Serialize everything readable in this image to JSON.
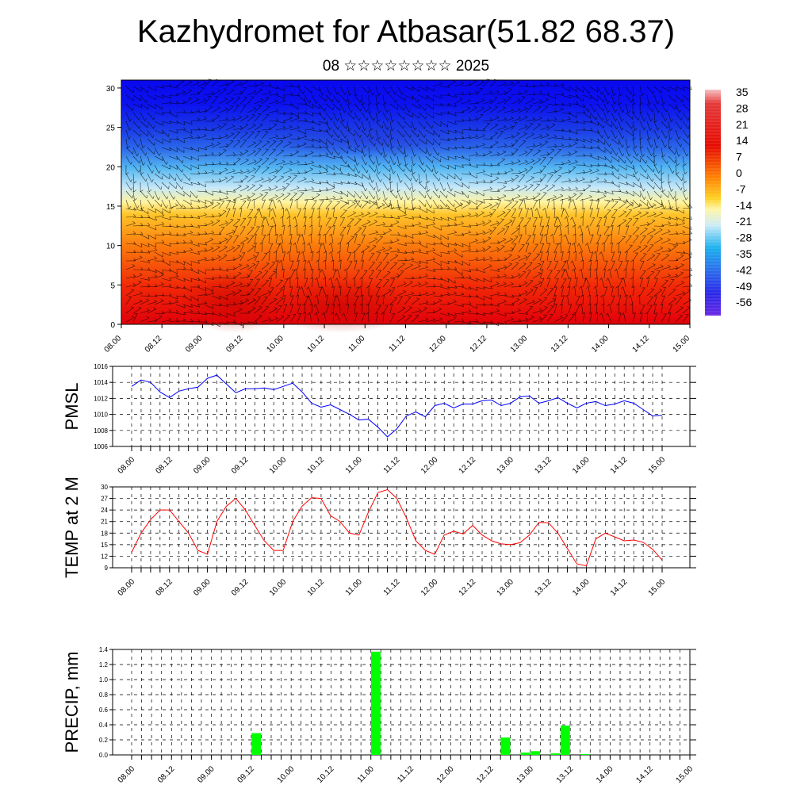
{
  "header": {
    "title": "Kazhydromet for Atbasar(51.82 68.37)",
    "subtitle": "08 ☆☆☆☆☆☆☆☆ 2025"
  },
  "colors": {
    "pmsl_line": "#0000ff",
    "temp_line": "#ff0000",
    "precip_bar": "#00ff00",
    "wind_barb": "#000000"
  },
  "chart_data": [
    {
      "type": "heatmap",
      "name": "vertical cross-section",
      "x_ticks": [
        "08.00",
        "08.12",
        "09.00",
        "09.12",
        "10.00",
        "10.12",
        "11.00",
        "11.12",
        "12.00",
        "12.12",
        "13.00",
        "13.12",
        "14.00",
        "14.12",
        "15.00"
      ],
      "y_ticks": [
        0,
        5,
        10,
        15,
        20,
        25,
        30
      ],
      "ylim": [
        0,
        31
      ],
      "colorbar_labels": [
        "35",
        "28",
        "21",
        "14",
        "7",
        "0",
        "-7",
        "-14",
        "-21",
        "-28",
        "-35",
        "-42",
        "-49",
        "-56"
      ],
      "overlay": "wind barbs"
    },
    {
      "type": "line",
      "ylabel": "PMSL",
      "ylim": [
        1006,
        1016
      ],
      "y_ticks": [
        "1006",
        "1008",
        "1010",
        "1012",
        "1014",
        "1016"
      ],
      "x_ticks": [
        "08.00",
        "08.12",
        "09.00",
        "09.12",
        "10.00",
        "10.12",
        "11.00",
        "11.12",
        "12.00",
        "12.12",
        "13.00",
        "13.12",
        "14.00",
        "14.12",
        "15.00"
      ],
      "values": [
        1013.5,
        1014.3,
        1014.0,
        1012.8,
        1012.1,
        1012.9,
        1013.2,
        1013.4,
        1014.5,
        1014.9,
        1013.8,
        1012.7,
        1013.2,
        1013.2,
        1013.3,
        1013.1,
        1013.5,
        1013.9,
        1012.8,
        1011.4,
        1010.9,
        1011.2,
        1010.6,
        1010.0,
        1009.3,
        1009.4,
        1008.4,
        1007.2,
        1008.2,
        1009.8,
        1010.3,
        1009.7,
        1011.1,
        1011.4,
        1010.8,
        1011.3,
        1011.3,
        1011.7,
        1011.8,
        1011.1,
        1011.4,
        1012.2,
        1012.3,
        1011.4,
        1011.7,
        1012.1,
        1011.4,
        1010.8,
        1011.4,
        1011.6,
        1011.1,
        1011.3,
        1011.7,
        1011.4,
        1010.6,
        1009.8,
        1009.9
      ]
    },
    {
      "type": "line",
      "ylabel": "TEMP at 2 M",
      "ylim": [
        9,
        30
      ],
      "y_ticks": [
        "9",
        "12",
        "15",
        "18",
        "21",
        "24",
        "27",
        "30"
      ],
      "x_ticks": [
        "08.00",
        "08.12",
        "09.00",
        "09.12",
        "10.00",
        "10.12",
        "11.00",
        "11.12",
        "12.00",
        "12.12",
        "13.00",
        "13.12",
        "14.00",
        "14.12",
        "15.00"
      ],
      "values": [
        13,
        18,
        21.5,
        24,
        24,
        21,
        18,
        13.5,
        12.5,
        21,
        25,
        27,
        24,
        20,
        16,
        13.5,
        13.5,
        21,
        25,
        27.2,
        27,
        22.5,
        21,
        18,
        17.5,
        23.5,
        28.5,
        29.3,
        27,
        22,
        16,
        13.5,
        12.5,
        17.5,
        18.5,
        17.8,
        20,
        17.5,
        16,
        15.2,
        15,
        15.5,
        17.5,
        20.8,
        20.7,
        18,
        14,
        10,
        9.5,
        16.5,
        18,
        17,
        16,
        16.2,
        15.6,
        13.8,
        11
      ]
    },
    {
      "type": "bar",
      "ylabel": "PRECIP, mm",
      "ylim": [
        0,
        1.4
      ],
      "y_ticks": [
        "0.0",
        "0.2",
        "0.4",
        "0.6",
        "0.8",
        "1.0",
        "1.2",
        "1.4"
      ],
      "x_ticks": [
        "08.00",
        "08.12",
        "09.00",
        "09.12",
        "10.00",
        "10.12",
        "11.00",
        "11.12",
        "12.00",
        "12.12",
        "13.00",
        "13.12",
        "14.00",
        "14.12",
        "15.00"
      ],
      "bars": [
        {
          "step": 12.5,
          "value": 0.29
        },
        {
          "step": 24.5,
          "value": 1.37
        },
        {
          "step": 37.5,
          "value": 0.23
        },
        {
          "step": 39.5,
          "value": 0.03
        },
        {
          "step": 40.5,
          "value": 0.05
        },
        {
          "step": 42.5,
          "value": 0.02
        },
        {
          "step": 43.5,
          "value": 0.39
        },
        {
          "step": 45.5,
          "value": 0.01
        }
      ]
    }
  ]
}
